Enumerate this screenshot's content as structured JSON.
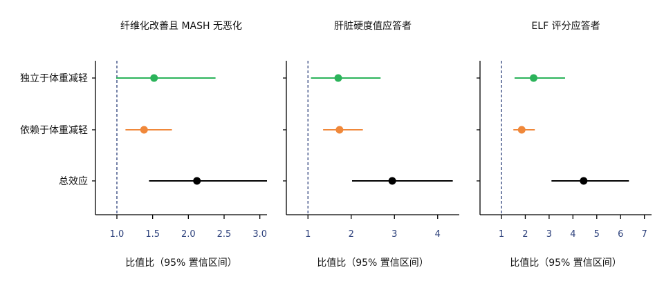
{
  "chart_data": [
    {
      "type": "forest",
      "title": "纤维化改善且 MASH 无恶化",
      "xlabel": "比值比（95% 置信区间）",
      "categories": [
        "独立于体重减轻",
        "依赖于体重减轻",
        "总效应"
      ],
      "xlim": [
        0.7,
        3.1
      ],
      "xticks": [
        1.0,
        1.5,
        2.0,
        2.5,
        3.0
      ],
      "xtick_labels": [
        "1.0",
        "1.5",
        "2.0",
        "2.5",
        "3.0"
      ],
      "reference_line": 1,
      "points": [
        {
          "category": "独立于体重减轻",
          "estimate": 1.52,
          "lower": 0.99,
          "upper": 2.38,
          "color": "#2bb35a"
        },
        {
          "category": "依赖于体重减轻",
          "estimate": 1.38,
          "lower": 1.12,
          "upper": 1.77,
          "color": "#f0883a"
        },
        {
          "category": "总效应",
          "estimate": 2.12,
          "lower": 1.45,
          "upper": 3.1,
          "color": "#000000"
        }
      ]
    },
    {
      "type": "forest",
      "title": "肝脏硬度值应答者",
      "xlabel": "比值比（95% 置信区间）",
      "categories": [
        "独立于体重减轻",
        "依赖于体重减轻",
        "总效应"
      ],
      "xlim": [
        0.5,
        4.5
      ],
      "xticks": [
        1,
        2,
        3,
        4
      ],
      "xtick_labels": [
        "1",
        "2",
        "3",
        "4"
      ],
      "reference_line": 1,
      "points": [
        {
          "category": "独立于体重减轻",
          "estimate": 1.7,
          "lower": 1.07,
          "upper": 2.68,
          "color": "#2bb35a"
        },
        {
          "category": "依赖于体重减轻",
          "estimate": 1.73,
          "lower": 1.35,
          "upper": 2.27,
          "color": "#f0883a"
        },
        {
          "category": "总效应",
          "estimate": 2.95,
          "lower": 2.02,
          "upper": 4.35,
          "color": "#000000"
        }
      ]
    },
    {
      "type": "forest",
      "title": "ELF 评分应答者",
      "xlabel": "比值比（95% 置信区间）",
      "categories": [
        "独立于体重减轻",
        "依赖于体重减轻",
        "总效应"
      ],
      "xlim": [
        0.1,
        7.3
      ],
      "xticks": [
        1,
        2,
        3,
        4,
        5,
        6,
        7
      ],
      "xtick_labels": [
        "1",
        "2",
        "3",
        "4",
        "5",
        "6",
        "7"
      ],
      "reference_line": 1,
      "points": [
        {
          "category": "独立于体重减轻",
          "estimate": 2.35,
          "lower": 1.55,
          "upper": 3.67,
          "color": "#2bb35a"
        },
        {
          "category": "依赖于体重减轻",
          "estimate": 1.85,
          "lower": 1.5,
          "upper": 2.4,
          "color": "#f0883a"
        },
        {
          "category": "总效应",
          "estimate": 4.45,
          "lower": 3.1,
          "upper": 6.35,
          "color": "#000000"
        }
      ]
    }
  ]
}
